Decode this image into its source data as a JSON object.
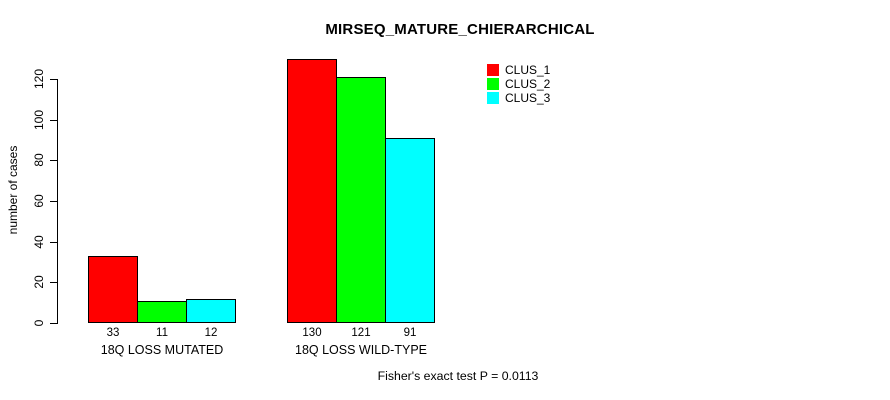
{
  "title": "MIRSEQ_MATURE_CHIERARCHICAL",
  "footer": "Fisher's exact test P = 0.0113",
  "chart_data": {
    "type": "bar",
    "title": "MIRSEQ_MATURE_CHIERARCHICAL",
    "xlabel": "",
    "ylabel": "number of cases",
    "categories": [
      "18Q LOSS MUTATED",
      "18Q LOSS WILD-TYPE"
    ],
    "series": [
      {
        "name": "CLUS_1",
        "color": "#ff0000",
        "values": [
          33,
          130
        ]
      },
      {
        "name": "CLUS_2",
        "color": "#00ff00",
        "values": [
          11,
          121
        ]
      },
      {
        "name": "CLUS_3",
        "color": "#00ffff",
        "values": [
          12,
          91
        ]
      }
    ],
    "yticks": [
      0,
      20,
      40,
      60,
      80,
      100,
      120
    ],
    "ylim": [
      0,
      130
    ],
    "grid": false,
    "legend_position": "topright",
    "bar_border_color": "#000000",
    "show_value_labels": true,
    "annotation": "Fisher's exact test P = 0.0113"
  }
}
